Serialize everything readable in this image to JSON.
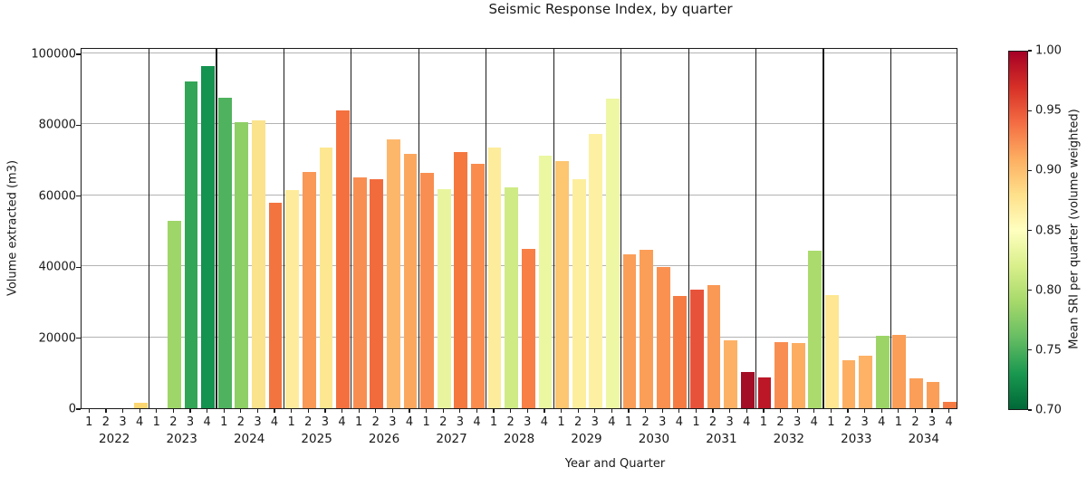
{
  "chart_data": {
    "type": "bar",
    "title": "Seismic Response Index, by quarter",
    "xlabel": "Year and Quarter",
    "ylabel": "Volume extracted (m3)",
    "ylim": [
      0,
      101800
    ],
    "yticks": [
      0,
      20000,
      40000,
      60000,
      80000,
      100000
    ],
    "grid": "horizontal-light-gray",
    "legend_position": "right-colorbar",
    "quarter_labels": [
      "1",
      "2",
      "3",
      "4"
    ],
    "years": [
      {
        "year": "2022",
        "volumes": [
          0,
          0,
          0,
          1500
        ],
        "sri": [
          null,
          null,
          null,
          0.89
        ],
        "colors": [
          null,
          null,
          null,
          "#fcd671"
        ]
      },
      {
        "year": "2023",
        "volumes": [
          0,
          52900,
          92100,
          96500
        ],
        "sri": [
          null,
          0.787,
          0.742,
          0.727
        ],
        "colors": [
          null,
          "#9fd669",
          "#33a556",
          "#14924f"
        ]
      },
      {
        "year": "2024",
        "volumes": [
          87400,
          80700,
          81200,
          57800
        ],
        "sri": [
          0.752,
          0.781,
          0.877,
          0.938
        ],
        "colors": [
          "#4fb25e",
          "#8ecf66",
          "#fbe28c",
          "#f3743f"
        ]
      },
      {
        "year": "2025",
        "volumes": [
          61500,
          66500,
          73400,
          84000
        ],
        "sri": [
          0.862,
          0.917,
          0.871,
          0.94
        ],
        "colors": [
          "#feec9c",
          "#fa9856",
          "#fde791",
          "#f4713f"
        ]
      },
      {
        "year": "2026",
        "volumes": [
          65000,
          64500,
          75700,
          71700
        ],
        "sri": [
          0.921,
          0.944,
          0.905,
          0.912
        ],
        "colors": [
          "#f98e52",
          "#f26b3c",
          "#fdb76b",
          "#fca75e"
        ]
      },
      {
        "year": "2027",
        "volumes": [
          66400,
          61800,
          72100,
          68900
        ],
        "sri": [
          0.921,
          0.833,
          0.937,
          0.922
        ],
        "colors": [
          "#f98e52",
          "#e9f59e",
          "#f5783f",
          "#fa8c4e"
        ]
      },
      {
        "year": "2028",
        "volumes": [
          73600,
          62200,
          45000,
          71200
        ],
        "sri": [
          0.861,
          0.815,
          0.932,
          0.836
        ],
        "colors": [
          "#fdec9b",
          "#cfeb86",
          "#f87f46",
          "#ebf7a1"
        ]
      },
      {
        "year": "2029",
        "volumes": [
          69600,
          64500,
          77400,
          87300
        ],
        "sri": [
          0.893,
          0.857,
          0.854,
          0.84
        ],
        "colors": [
          "#fdc671",
          "#fdee9e",
          "#fdf0a2",
          "#eef7a3"
        ]
      },
      {
        "year": "2030",
        "volumes": [
          43300,
          44600,
          39700,
          31600
        ],
        "sri": [
          0.915,
          0.915,
          0.92,
          0.936
        ],
        "colors": [
          "#fb9e58",
          "#fb9e58",
          "#fa9150",
          "#f67b43"
        ]
      },
      {
        "year": "2031",
        "volumes": [
          33300,
          34800,
          19200,
          10100
        ],
        "sri": [
          0.955,
          0.917,
          0.908,
          0.998
        ],
        "colors": [
          "#e7533a",
          "#fa9855",
          "#fdb165",
          "#a30d26"
        ]
      },
      {
        "year": "2032",
        "volumes": [
          8800,
          18700,
          18500,
          44400
        ],
        "sri": [
          0.983,
          0.921,
          0.91,
          0.787
        ],
        "colors": [
          "#bc1726",
          "#f98e52",
          "#fdad60",
          "#aadb6c"
        ]
      },
      {
        "year": "2033",
        "volumes": [
          31900,
          13500,
          14700,
          20400
        ],
        "sri": [
          0.872,
          0.91,
          0.907,
          0.783
        ],
        "colors": [
          "#fee692",
          "#fdae61",
          "#fdb265",
          "#9dd467"
        ]
      },
      {
        "year": "2034",
        "volumes": [
          20600,
          8400,
          7300,
          1800
        ],
        "sri": [
          0.915,
          0.915,
          0.915,
          0.936
        ],
        "colors": [
          "#fb9e58",
          "#fb9e58",
          "#fb9e58",
          "#f67b43"
        ]
      }
    ],
    "colorbar": {
      "label": "Mean SRI per quarter (volume weighted)",
      "min": 0.7,
      "max": 1.0,
      "ticks": [
        "1.00",
        "0.95",
        "0.90",
        "0.85",
        "0.80",
        "0.75",
        "0.70"
      ],
      "tick_values": [
        1.0,
        0.95,
        0.9,
        0.85,
        0.8,
        0.75,
        0.7
      ],
      "gradient_bottom_to_top": [
        "#006837",
        "#1a9850",
        "#66bd63",
        "#a6d96a",
        "#d9ef8b",
        "#ffffbf",
        "#fee08b",
        "#fdae61",
        "#f46d43",
        "#d73027",
        "#a50026"
      ]
    },
    "colors": {
      "text": "#1a1a1a",
      "gridline": "#b3b3b3",
      "spine": "#1a1a1a",
      "background": "#ffffff"
    }
  }
}
